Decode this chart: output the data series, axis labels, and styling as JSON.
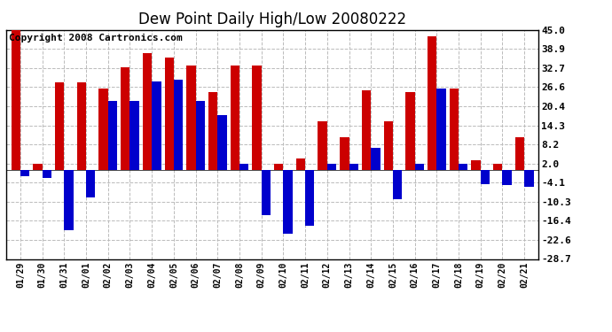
{
  "title": "Dew Point Daily High/Low 20080222",
  "copyright": "Copyright 2008 Cartronics.com",
  "dates": [
    "01/29",
    "01/30",
    "01/31",
    "02/01",
    "02/02",
    "02/03",
    "02/04",
    "02/05",
    "02/06",
    "02/07",
    "02/08",
    "02/09",
    "02/10",
    "02/11",
    "02/12",
    "02/13",
    "02/14",
    "02/15",
    "02/16",
    "02/17",
    "02/18",
    "02/19",
    "02/20",
    "02/21"
  ],
  "highs": [
    45.0,
    2.0,
    28.0,
    28.0,
    26.0,
    33.0,
    37.5,
    36.0,
    33.5,
    25.0,
    33.5,
    33.5,
    2.0,
    3.5,
    15.5,
    10.5,
    25.5,
    15.5,
    25.0,
    43.0,
    26.0,
    3.0,
    2.0,
    10.5
  ],
  "lows": [
    -2.0,
    -2.5,
    -19.5,
    -9.0,
    22.0,
    22.0,
    28.5,
    29.0,
    22.0,
    17.5,
    2.0,
    -14.5,
    -20.5,
    -18.0,
    2.0,
    2.0,
    7.0,
    -9.5,
    2.0,
    26.0,
    2.0,
    -4.5,
    -5.0,
    -5.5
  ],
  "ylim_min": -28.7,
  "ylim_max": 45.0,
  "yticks": [
    45.0,
    38.9,
    32.7,
    26.6,
    20.4,
    14.3,
    8.2,
    2.0,
    -4.1,
    -10.3,
    -16.4,
    -22.6,
    -28.7
  ],
  "high_color": "#cc0000",
  "low_color": "#0000cc",
  "bg_color": "#ffffff",
  "grid_color": "#bbbbbb",
  "title_fontsize": 12,
  "copyright_fontsize": 8
}
